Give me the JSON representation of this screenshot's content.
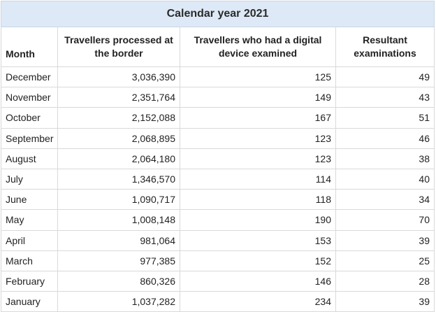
{
  "table": {
    "caption": "Calendar year 2021",
    "headers": {
      "month": "Month",
      "processed": "Travellers processed at the border",
      "examined": "Travellers who had a digital device examined",
      "resultant": "Resultant examinations"
    },
    "rows": [
      {
        "month": "December",
        "processed": "3,036,390",
        "examined": "125",
        "resultant": "49"
      },
      {
        "month": "November",
        "processed": "2,351,764",
        "examined": "149",
        "resultant": "43"
      },
      {
        "month": "October",
        "processed": "2,152,088",
        "examined": "167",
        "resultant": "51"
      },
      {
        "month": "September",
        "processed": "2,068,895",
        "examined": "123",
        "resultant": "46"
      },
      {
        "month": "August",
        "processed": "2,064,180",
        "examined": "123",
        "resultant": "38"
      },
      {
        "month": "July",
        "processed": "1,346,570",
        "examined": "114",
        "resultant": "40"
      },
      {
        "month": "June",
        "processed": "1,090,717",
        "examined": "118",
        "resultant": "34"
      },
      {
        "month": "May",
        "processed": "1,008,148",
        "examined": "190",
        "resultant": "70"
      },
      {
        "month": "April",
        "processed": "981,064",
        "examined": "153",
        "resultant": "39"
      },
      {
        "month": "March",
        "processed": "977,385",
        "examined": "152",
        "resultant": "25"
      },
      {
        "month": "February",
        "processed": "860,326",
        "examined": "146",
        "resultant": "28"
      },
      {
        "month": "January",
        "processed": "1,037,282",
        "examined": "234",
        "resultant": "39"
      }
    ]
  }
}
